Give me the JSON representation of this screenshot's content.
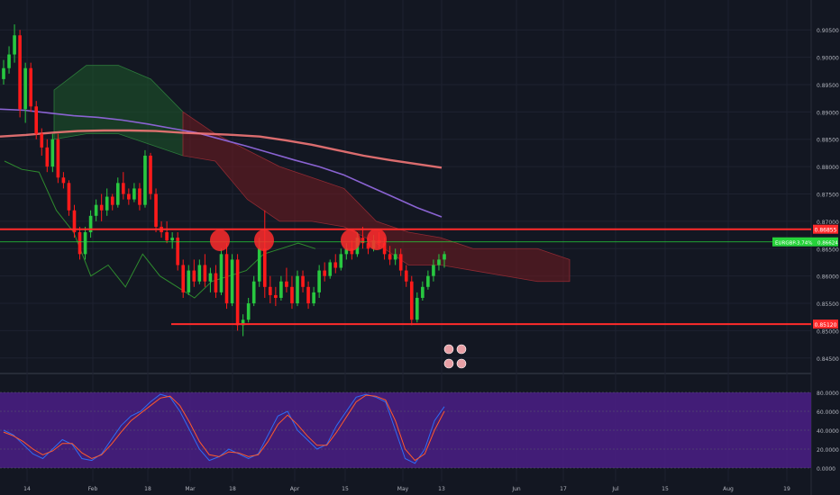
{
  "colors": {
    "background": "#131722",
    "grid": "#1e2230",
    "axis_text": "#b2b5be",
    "candle_up": "#28c840",
    "candle_down": "#ff1a1a",
    "level_line": "#ff2b2b",
    "current_price": "#26d33a",
    "ma_fast": "#ff7b7b",
    "ma_slow": "#8a63d2",
    "ichimoku_bull": "#1d5a2a",
    "ichimoku_bear": "#6b1b22",
    "lagging_span": "#2e8b2e",
    "stoch_fill": "#4b1e86",
    "stoch_k": "#2d6df6",
    "stoch_d": "#ff5a2a"
  },
  "chart_data": [
    {
      "type": "line",
      "panel": "price",
      "ylim": [
        0.8425,
        0.9075
      ],
      "y_ticks": [
        "0.90500",
        "0.90000",
        "0.89500",
        "0.89000",
        "0.88500",
        "0.88000",
        "0.87500",
        "0.87000",
        "0.86500",
        "0.86000",
        "0.85500",
        "0.85000",
        "0.84500"
      ],
      "x_ticks": [
        "14",
        "Feb",
        "18",
        "Mar",
        "18",
        "Apr",
        "15",
        "May",
        "13",
        "Jun",
        "17",
        "Jul",
        "15",
        "Aug",
        "19"
      ],
      "candles": [
        [
          0.896,
          0.8995,
          0.895,
          0.898
        ],
        [
          0.898,
          0.902,
          0.897,
          0.9005
        ],
        [
          0.9005,
          0.906,
          0.899,
          0.904
        ],
        [
          0.904,
          0.905,
          0.889,
          0.8905
        ],
        [
          0.8905,
          0.899,
          0.888,
          0.898
        ],
        [
          0.898,
          0.899,
          0.89,
          0.891
        ],
        [
          0.891,
          0.892,
          0.885,
          0.886
        ],
        [
          0.886,
          0.887,
          0.882,
          0.8835
        ],
        [
          0.8835,
          0.885,
          0.879,
          0.88
        ],
        [
          0.88,
          0.886,
          0.879,
          0.885
        ],
        [
          0.885,
          0.886,
          0.877,
          0.878
        ],
        [
          0.878,
          0.879,
          0.876,
          0.877
        ],
        [
          0.877,
          0.8775,
          0.871,
          0.872
        ],
        [
          0.872,
          0.873,
          0.867,
          0.868
        ],
        [
          0.868,
          0.869,
          0.863,
          0.864
        ],
        [
          0.864,
          0.869,
          0.863,
          0.868
        ],
        [
          0.868,
          0.872,
          0.867,
          0.871
        ],
        [
          0.871,
          0.874,
          0.87,
          0.873
        ],
        [
          0.873,
          0.875,
          0.87,
          0.872
        ],
        [
          0.872,
          0.876,
          0.871,
          0.8745
        ],
        [
          0.8745,
          0.875,
          0.872,
          0.873
        ],
        [
          0.873,
          0.878,
          0.8725,
          0.877
        ],
        [
          0.877,
          0.879,
          0.874,
          0.875
        ],
        [
          0.875,
          0.876,
          0.873,
          0.874
        ],
        [
          0.874,
          0.877,
          0.8735,
          0.876
        ],
        [
          0.876,
          0.877,
          0.872,
          0.873
        ],
        [
          0.873,
          0.883,
          0.8725,
          0.882
        ],
        [
          0.882,
          0.8825,
          0.874,
          0.875
        ],
        [
          0.875,
          0.876,
          0.868,
          0.869
        ],
        [
          0.869,
          0.87,
          0.867,
          0.868
        ],
        [
          0.868,
          0.87,
          0.866,
          0.8665
        ],
        [
          0.8665,
          0.868,
          0.865,
          0.867
        ],
        [
          0.867,
          0.868,
          0.861,
          0.862
        ],
        [
          0.862,
          0.863,
          0.856,
          0.857
        ],
        [
          0.857,
          0.862,
          0.8565,
          0.861
        ],
        [
          0.861,
          0.863,
          0.858,
          0.859
        ],
        [
          0.859,
          0.863,
          0.8585,
          0.862
        ],
        [
          0.862,
          0.864,
          0.858,
          0.859
        ],
        [
          0.859,
          0.8615,
          0.857,
          0.8605
        ],
        [
          0.8605,
          0.862,
          0.856,
          0.857
        ],
        [
          0.857,
          0.865,
          0.8565,
          0.864
        ],
        [
          0.864,
          0.866,
          0.854,
          0.855
        ],
        [
          0.855,
          0.864,
          0.8545,
          0.863
        ],
        [
          0.863,
          0.864,
          0.85,
          0.851
        ],
        [
          0.851,
          0.853,
          0.849,
          0.852
        ],
        [
          0.852,
          0.856,
          0.8515,
          0.855
        ],
        [
          0.855,
          0.86,
          0.8545,
          0.859
        ],
        [
          0.859,
          0.867,
          0.858,
          0.865
        ],
        [
          0.865,
          0.872,
          0.856,
          0.858
        ],
        [
          0.858,
          0.86,
          0.855,
          0.8565
        ],
        [
          0.8565,
          0.858,
          0.8545,
          0.856
        ],
        [
          0.856,
          0.86,
          0.8555,
          0.859
        ],
        [
          0.859,
          0.8615,
          0.857,
          0.858
        ],
        [
          0.858,
          0.86,
          0.854,
          0.855
        ],
        [
          0.855,
          0.861,
          0.8545,
          0.86
        ],
        [
          0.86,
          0.861,
          0.857,
          0.858
        ],
        [
          0.858,
          0.859,
          0.854,
          0.855
        ],
        [
          0.855,
          0.858,
          0.8545,
          0.857
        ],
        [
          0.857,
          0.862,
          0.856,
          0.861
        ],
        [
          0.861,
          0.8625,
          0.859,
          0.86
        ],
        [
          0.86,
          0.863,
          0.8595,
          0.8625
        ],
        [
          0.8625,
          0.864,
          0.8605,
          0.8615
        ],
        [
          0.8615,
          0.865,
          0.861,
          0.864
        ],
        [
          0.864,
          0.866,
          0.863,
          0.865
        ],
        [
          0.865,
          0.8665,
          0.863,
          0.864
        ],
        [
          0.864,
          0.868,
          0.8635,
          0.867
        ],
        [
          0.867,
          0.869,
          0.865,
          0.866
        ],
        [
          0.866,
          0.867,
          0.864,
          0.865
        ],
        [
          0.865,
          0.8675,
          0.8645,
          0.8665
        ],
        [
          0.8665,
          0.868,
          0.865,
          0.866
        ],
        [
          0.866,
          0.867,
          0.863,
          0.864
        ],
        [
          0.864,
          0.8655,
          0.862,
          0.863
        ],
        [
          0.863,
          0.865,
          0.862,
          0.864
        ],
        [
          0.864,
          0.865,
          0.86,
          0.861
        ],
        [
          0.861,
          0.862,
          0.858,
          0.859
        ],
        [
          0.859,
          0.86,
          0.851,
          0.852
        ],
        [
          0.852,
          0.857,
          0.8515,
          0.856
        ],
        [
          0.856,
          0.859,
          0.8555,
          0.858
        ],
        [
          0.858,
          0.861,
          0.8575,
          0.86
        ],
        [
          0.86,
          0.863,
          0.859,
          0.862
        ],
        [
          0.862,
          0.864,
          0.861,
          0.863
        ],
        [
          0.863,
          0.8645,
          0.8615,
          0.864
        ]
      ],
      "overlays": {
        "ma_fast": [
          0.8855,
          0.8858,
          0.8862,
          0.8865,
          0.8866,
          0.8866,
          0.8865,
          0.8862,
          0.886,
          0.8858,
          0.8855,
          0.8848,
          0.884,
          0.883,
          0.882,
          0.8812,
          0.8805,
          0.8798
        ],
        "ma_slow": [
          0.8905,
          0.8903,
          0.8898,
          0.8893,
          0.889,
          0.8885,
          0.8878,
          0.887,
          0.8862,
          0.885,
          0.8838,
          0.8825,
          0.8812,
          0.88,
          0.8785,
          0.8765,
          0.8745,
          0.8725,
          0.8708
        ],
        "cloud_top": [
          0.894,
          0.8985,
          0.8985,
          0.896,
          0.89,
          0.886,
          0.883,
          0.88,
          0.878,
          0.876,
          0.87,
          0.868,
          0.867,
          0.865,
          0.865,
          0.865,
          0.863
        ],
        "cloud_bottom": [
          0.885,
          0.886,
          0.886,
          0.884,
          0.882,
          0.881,
          0.874,
          0.87,
          0.87,
          0.869,
          0.866,
          0.862,
          0.862,
          0.861,
          0.86,
          0.859,
          0.859
        ],
        "lagging_span": [
          0.881,
          0.8795,
          0.879,
          0.872,
          0.868,
          0.86,
          0.862,
          0.858,
          0.864,
          0.86,
          0.858,
          0.856,
          0.859,
          0.86,
          0.861,
          0.864,
          0.865,
          0.866,
          0.865
        ]
      },
      "resistance_level": 0.86855,
      "support_level": 0.8512,
      "current_price": 0.86624,
      "labels": {
        "resistance": "0.86855",
        "support": "0.85120",
        "symbol": "EURGBP",
        "change": "-3.74%",
        "price": "0.86624"
      }
    },
    {
      "type": "line",
      "panel": "stochastic",
      "ylim": [
        0,
        80
      ],
      "y_ticks": [
        "80.0000",
        "60.0000",
        "40.0000",
        "20.0000",
        "0.0000"
      ],
      "series": [
        {
          "name": "",
          "values": [
            40,
            35,
            25,
            15,
            10,
            20,
            30,
            25,
            10,
            8,
            15,
            30,
            45,
            55,
            60,
            70,
            78,
            75,
            60,
            40,
            20,
            8,
            12,
            20,
            15,
            10,
            15,
            35,
            55,
            60,
            40,
            30,
            20,
            25,
            45,
            60,
            75,
            78,
            75,
            70,
            40,
            10,
            5,
            20,
            50,
            65
          ]
        },
        {
          "name": "",
          "values": [
            38,
            34,
            28,
            20,
            14,
            18,
            26,
            26,
            16,
            10,
            14,
            25,
            38,
            50,
            58,
            66,
            74,
            76,
            66,
            48,
            28,
            14,
            12,
            17,
            16,
            12,
            14,
            28,
            46,
            56,
            46,
            34,
            24,
            24,
            38,
            54,
            70,
            77,
            76,
            72,
            50,
            20,
            8,
            15,
            40,
            60
          ]
        }
      ]
    }
  ]
}
